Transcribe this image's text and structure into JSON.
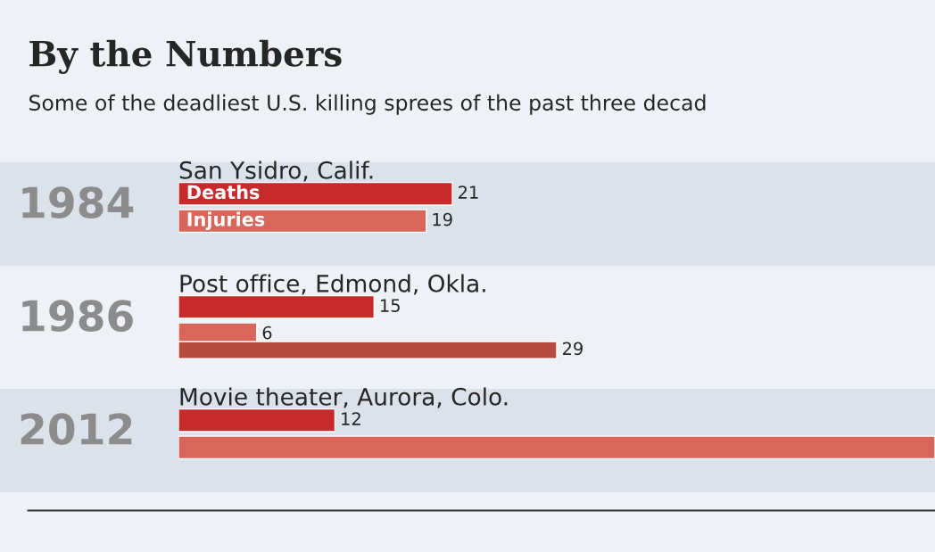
{
  "chart_data": {
    "type": "bar",
    "orientation": "horizontal",
    "title": "By the Numbers",
    "subtitle": "Some of the deadliest U.S. killing sprees of the past three decad",
    "categories": [
      "1984",
      "1986",
      "2012"
    ],
    "annotations": [
      "San Ysidro, Calif.",
      "Post office, Edmond, Okla.",
      "Movie theater, Aurora, Colo."
    ],
    "series": [
      {
        "name": "Deaths",
        "color": "#c62a2b",
        "values": [
          21,
          15,
          12
        ],
        "value_labels": [
          "21",
          "15",
          "12"
        ]
      },
      {
        "name": "Injuries",
        "color": "#d9665a",
        "values": [
          19,
          6,
          58
        ],
        "value_labels": [
          "19",
          "6",
          null
        ]
      },
      {
        "color": "#b54a40",
        "values": [
          null,
          29,
          null
        ],
        "value_labels": [
          null,
          "29",
          null
        ]
      }
    ]
  }
}
